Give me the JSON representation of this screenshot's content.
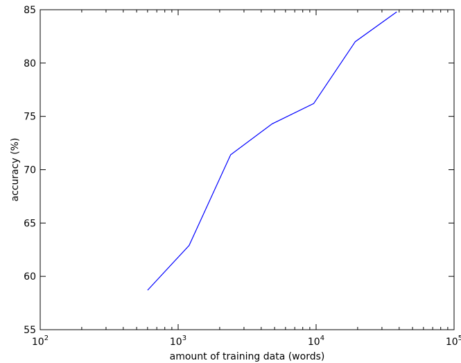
{
  "chart_data": {
    "type": "line",
    "title": "",
    "xlabel": "amount of training data (words)",
    "ylabel": "accuracy (%)",
    "xscale": "log",
    "xlim": [
      100,
      100000
    ],
    "ylim": [
      55,
      85
    ],
    "grid": false,
    "legend": "none",
    "x_ticks": [
      {
        "value": 100,
        "base": "10",
        "exp": "2"
      },
      {
        "value": 1000,
        "base": "10",
        "exp": "3"
      },
      {
        "value": 10000,
        "base": "10",
        "exp": "4"
      },
      {
        "value": 100000,
        "base": "10",
        "exp": "5"
      }
    ],
    "y_ticks": [
      {
        "value": 55,
        "label": "55"
      },
      {
        "value": 60,
        "label": "60"
      },
      {
        "value": 65,
        "label": "65"
      },
      {
        "value": 70,
        "label": "70"
      },
      {
        "value": 75,
        "label": "75"
      },
      {
        "value": 80,
        "label": "80"
      },
      {
        "value": 85,
        "label": "85"
      }
    ],
    "series": [
      {
        "color": "#0000ff",
        "points": [
          {
            "x": 600,
            "y": 58.7
          },
          {
            "x": 1200,
            "y": 62.9
          },
          {
            "x": 2400,
            "y": 71.4
          },
          {
            "x": 4800,
            "y": 74.3
          },
          {
            "x": 9600,
            "y": 76.2
          },
          {
            "x": 19200,
            "y": 82.0
          },
          {
            "x": 38400,
            "y": 84.8
          }
        ]
      }
    ]
  }
}
